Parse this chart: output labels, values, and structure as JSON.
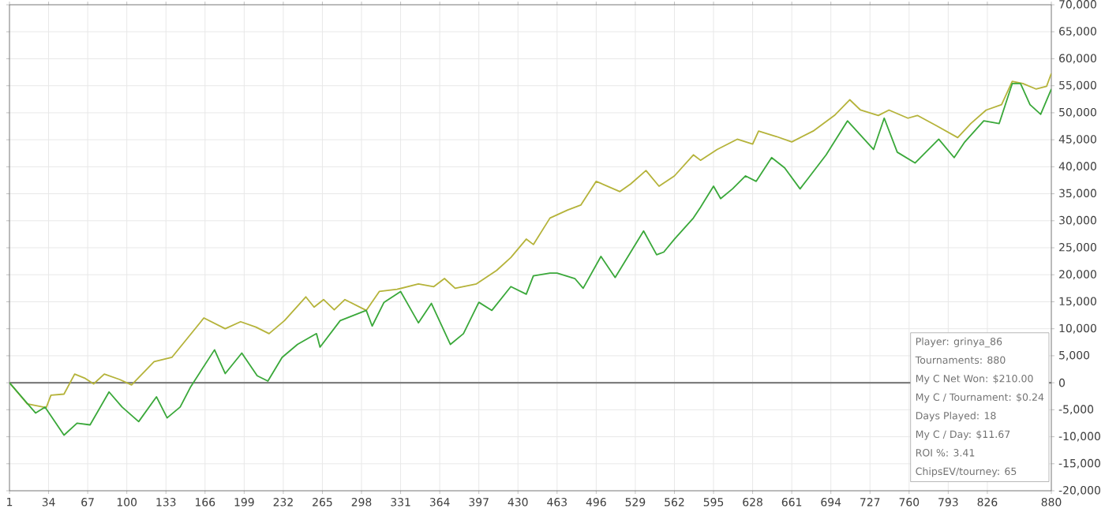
{
  "chart_data": {
    "type": "line",
    "xlim": [
      1,
      880
    ],
    "ylim": [
      -20000,
      70000
    ],
    "xticks": [
      1,
      34,
      67,
      100,
      133,
      166,
      199,
      232,
      265,
      298,
      331,
      364,
      397,
      430,
      463,
      496,
      529,
      562,
      595,
      628,
      661,
      694,
      727,
      760,
      793,
      826,
      880
    ],
    "yticks": [
      {
        "value": -20000,
        "label": "-20,000"
      },
      {
        "value": -15000,
        "label": "-15,000"
      },
      {
        "value": -10000,
        "label": "-10,000"
      },
      {
        "value": -5000,
        "label": "-5,000"
      },
      0,
      {
        "value": 5000,
        "label": "5,000"
      },
      {
        "value": 10000,
        "label": "10,000"
      },
      {
        "value": 15000,
        "label": "15,000"
      },
      {
        "value": 20000,
        "label": "20,000"
      },
      {
        "value": 25000,
        "label": "25,000"
      },
      {
        "value": 30000,
        "label": "30,000"
      },
      {
        "value": 35000,
        "label": "35,000"
      },
      {
        "value": 40000,
        "label": "40,000"
      },
      {
        "value": 45000,
        "label": "45,000"
      },
      {
        "value": 50000,
        "label": "50,000"
      },
      {
        "value": 55000,
        "label": "55,000"
      },
      {
        "value": 60000,
        "label": "60,000"
      },
      {
        "value": 65000,
        "label": "65,000"
      },
      {
        "value": 70000,
        "label": "70,000"
      }
    ],
    "grid": true,
    "marker": "none",
    "line_style": "solid",
    "ref_lines": [
      {
        "axis": "y",
        "value": 0,
        "color": "#7f7f7f"
      }
    ],
    "series": [
      {
        "color": "#b5b33a",
        "x": [
          1,
          16,
          32,
          36,
          47,
          56,
          65,
          72,
          81,
          94,
          104,
          123,
          138,
          165,
          183,
          196,
          209,
          220,
          233,
          251,
          258,
          266,
          275,
          284,
          302,
          313,
          328,
          346,
          359,
          368,
          377,
          395,
          412,
          424,
          437,
          443,
          457,
          472,
          483,
          496,
          516,
          525,
          538,
          549,
          562,
          578,
          584,
          598,
          615,
          628,
          633,
          648,
          661,
          679,
          697,
          710,
          719,
          734,
          743,
          759,
          767,
          783,
          801,
          812,
          825,
          838,
          847,
          856,
          867,
          876,
          880
        ],
        "values": [
          0,
          -3900,
          -4600,
          -2300,
          -2100,
          1600,
          800,
          -200,
          1600,
          600,
          -400,
          3900,
          4700,
          12000,
          10000,
          11300,
          10300,
          9100,
          11500,
          15900,
          14000,
          15400,
          13500,
          15400,
          13400,
          16900,
          17300,
          18300,
          17800,
          19300,
          17500,
          18300,
          20800,
          23200,
          26600,
          25600,
          30500,
          32000,
          32900,
          37300,
          35400,
          36800,
          39300,
          36400,
          38300,
          42200,
          41200,
          43200,
          45100,
          44200,
          46600,
          45600,
          44600,
          46600,
          49500,
          52400,
          50500,
          49500,
          50500,
          49000,
          49500,
          47600,
          45400,
          48000,
          50500,
          51500,
          55800,
          55400,
          54400,
          54900,
          57300
        ]
      },
      {
        "color": "#3aa83a",
        "x": [
          1,
          23,
          31,
          47,
          58,
          69,
          85,
          96,
          110,
          125,
          134,
          145,
          154,
          174,
          183,
          197,
          210,
          219,
          231,
          244,
          260,
          263,
          280,
          302,
          307,
          317,
          331,
          346,
          357,
          373,
          384,
          397,
          408,
          424,
          437,
          443,
          457,
          463,
          478,
          485,
          500,
          512,
          536,
          547,
          553,
          562,
          578,
          584,
          595,
          601,
          611,
          622,
          631,
          644,
          655,
          668,
          675,
          690,
          708,
          730,
          739,
          750,
          765,
          785,
          798,
          807,
          823,
          836,
          847,
          854,
          862,
          871,
          880
        ],
        "values": [
          0,
          -5600,
          -4500,
          -9700,
          -7500,
          -7800,
          -1700,
          -4500,
          -7200,
          -2600,
          -6500,
          -4500,
          -700,
          6100,
          1700,
          5500,
          1300,
          300,
          4700,
          7100,
          9100,
          6600,
          11500,
          13400,
          10500,
          14900,
          16900,
          11100,
          14700,
          7100,
          9100,
          14900,
          13400,
          17800,
          16400,
          19800,
          20300,
          20300,
          19300,
          17500,
          23400,
          19500,
          28100,
          23700,
          24200,
          26600,
          30500,
          32500,
          36400,
          34100,
          35900,
          38300,
          37300,
          41700,
          39800,
          35900,
          37900,
          42200,
          48500,
          43200,
          49000,
          42700,
          40700,
          45100,
          41700,
          44600,
          48500,
          48000,
          55400,
          55400,
          51500,
          49700,
          54400
        ]
      }
    ],
    "annotations": [
      "Player: grinya_86",
      "Tournaments: 880",
      "My C Net Won: $210.00",
      "My C / Tournament: $0.24",
      "Days Played: 18",
      "My C / Day: $11.67",
      "ROI %: 3.41",
      "ChipsEV/tourney: 65"
    ]
  }
}
